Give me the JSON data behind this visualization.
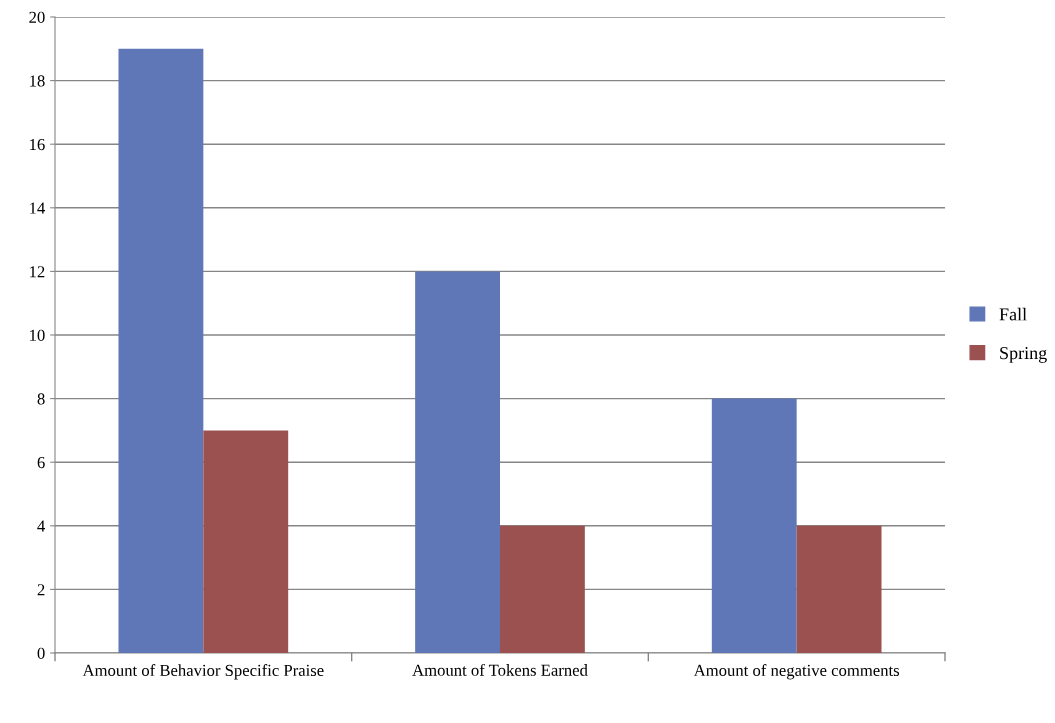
{
  "chart_data": {
    "type": "bar",
    "categories": [
      "Amount of Behavior Specific Praise",
      "Amount of Tokens Earned",
      "Amount of negative comments"
    ],
    "series": [
      {
        "name": "Fall",
        "color": "#5f77b6",
        "values": [
          19,
          12,
          8
        ]
      },
      {
        "name": "Spring",
        "color": "#9c5151",
        "values": [
          7,
          4,
          4
        ]
      }
    ],
    "ylim": [
      0,
      20
    ],
    "yticks": [
      0,
      2,
      4,
      6,
      8,
      10,
      12,
      14,
      16,
      18,
      20
    ],
    "grid": "y",
    "legend": "right"
  }
}
